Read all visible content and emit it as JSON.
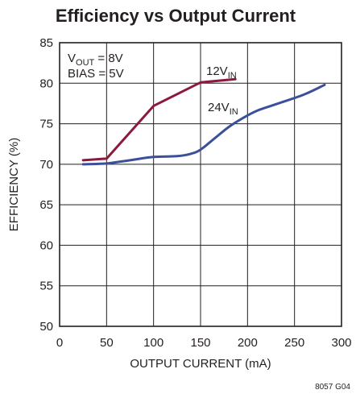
{
  "chart_data": {
    "type": "line",
    "title": "Efficiency vs Output Current",
    "xlabel": "OUTPUT CURRENT (mA)",
    "ylabel": "EFFICIENCY (%)",
    "xlim": [
      0,
      300
    ],
    "ylim": [
      50,
      85
    ],
    "xticks": [
      "0",
      "50",
      "100",
      "150",
      "200",
      "250",
      "300"
    ],
    "yticks": [
      "50",
      "55",
      "60",
      "65",
      "70",
      "75",
      "80",
      "85"
    ],
    "grid": true,
    "conditions": {
      "vout": {
        "main": "V",
        "sub": "OUT",
        "rest": " = 8V"
      },
      "bias": "BIAS = 5V"
    },
    "series": [
      {
        "label_main": "12V",
        "label_sub": "IN",
        "color": "#8b1a3d",
        "points": [
          [
            25,
            70.5
          ],
          [
            50,
            70.7
          ],
          [
            100,
            77.2
          ],
          [
            150,
            80.1
          ],
          [
            187,
            80.5
          ]
        ]
      },
      {
        "label_main": "24V",
        "label_sub": "IN",
        "color": "#3b4f9a",
        "points": [
          [
            25,
            70.0
          ],
          [
            50,
            70.1
          ],
          [
            75,
            70.5
          ],
          [
            100,
            70.9
          ],
          [
            125,
            71.0
          ],
          [
            140,
            71.3
          ],
          [
            150,
            71.8
          ],
          [
            165,
            73.2
          ],
          [
            180,
            74.6
          ],
          [
            195,
            75.7
          ],
          [
            210,
            76.6
          ],
          [
            230,
            77.4
          ],
          [
            260,
            78.6
          ],
          [
            282,
            79.8
          ]
        ]
      }
    ],
    "figure_code": "8057 G04"
  }
}
